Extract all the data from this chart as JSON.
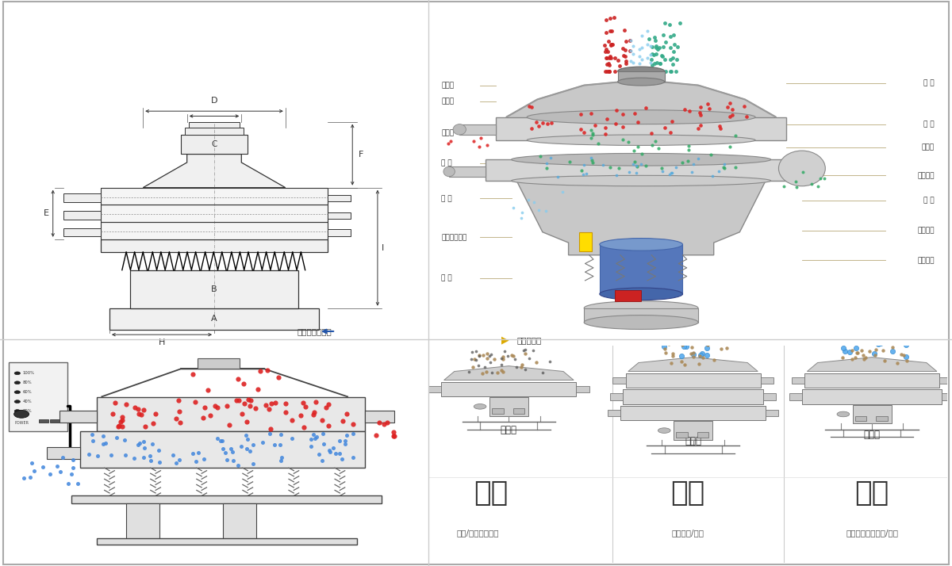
{
  "bg_color": "#ffffff",
  "left_labels": [
    "进料口",
    "防尘盖",
    "出料口",
    "束 环",
    "弹 簧",
    "运输固定螺栓",
    "机 座"
  ],
  "right_labels": [
    "筛 网",
    "网 架",
    "加重块",
    "上部重锤",
    "筛 盘",
    "振动电机",
    "下部重锤"
  ],
  "bottom_left_label1": "分级",
  "bottom_left_label2": "颟粒/粉末准确分级",
  "bottom_mid_label1": "过滤",
  "bottom_mid_label2": "去除异物/结块",
  "bottom_right_label1": "除杂",
  "bottom_right_label2": "去除液体中的颟粒/异物",
  "single_layer": "单层式",
  "three_layer": "三层式",
  "double_layer": "双层式",
  "structure_label": "结构示意图",
  "outline_label": "外形尺寸示意图"
}
